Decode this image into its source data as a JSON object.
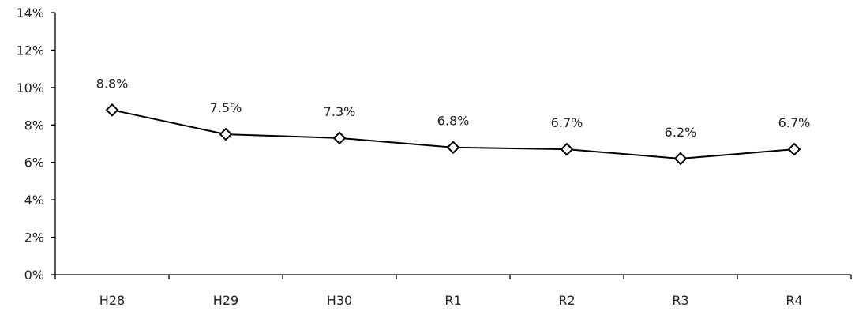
{
  "chart_data": {
    "type": "line",
    "title": "",
    "xlabel": "",
    "ylabel": "",
    "categories": [
      "H28",
      "H29",
      "H30",
      "R1",
      "R2",
      "R3",
      "R4"
    ],
    "series": [
      {
        "values": [
          8.8,
          7.5,
          7.3,
          6.8,
          6.7,
          6.2,
          6.7
        ],
        "labels": [
          "8.8%",
          "7.5%",
          "7.3%",
          "6.8%",
          "6.7%",
          "6.2%",
          "6.7%"
        ],
        "marker": "diamond-open",
        "color": "#000000"
      }
    ],
    "ylim": [
      0,
      14
    ],
    "y_ticks": [
      0,
      2,
      4,
      6,
      8,
      10,
      12,
      14
    ],
    "y_tick_labels": [
      "0%",
      "2%",
      "4%",
      "6%",
      "8%",
      "10%",
      "12%",
      "14%"
    ],
    "grid": false,
    "legend": "none"
  }
}
